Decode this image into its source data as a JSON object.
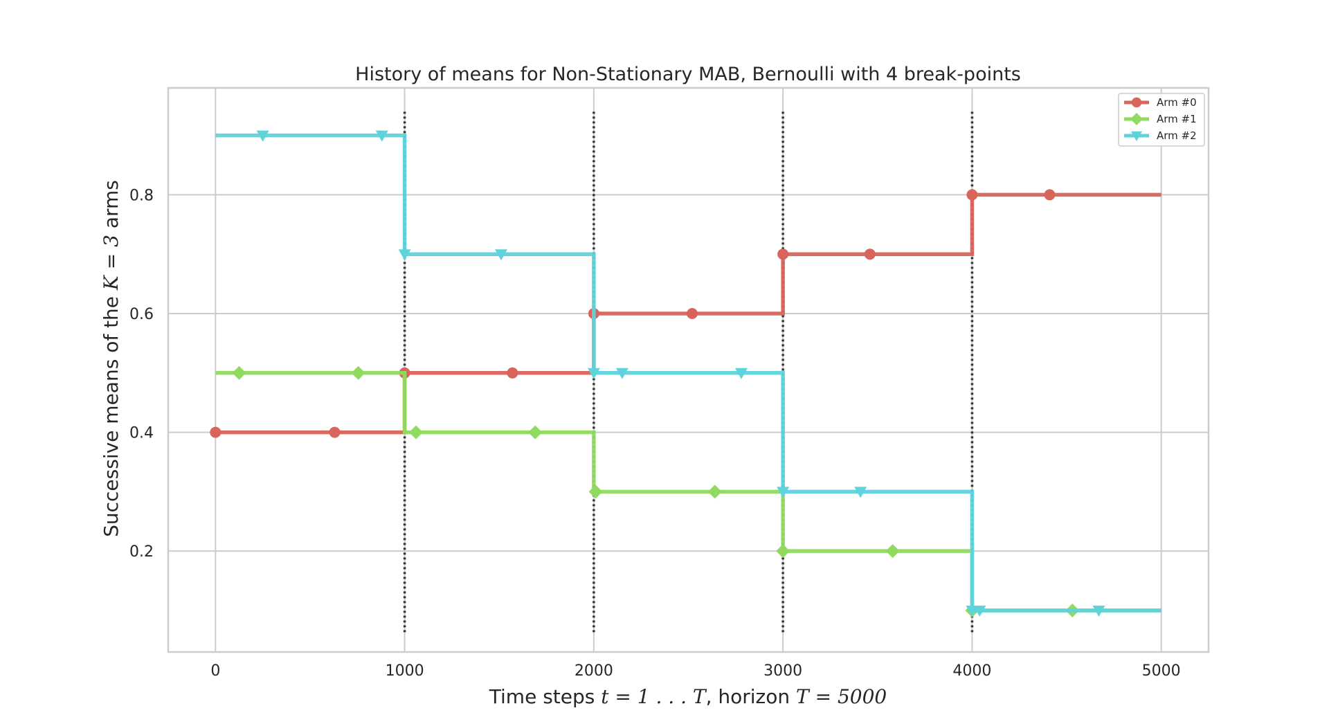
{
  "chart_data": {
    "type": "line",
    "title": "History of means for Non-Stationary MAB, Bernoulli with 4 break-points",
    "xlabel": {
      "prefix": "Time steps ",
      "math1": "t = 1 . . . T",
      "middle": ", horizon ",
      "math2": "T = 5000"
    },
    "ylabel": {
      "prefix": "Successive means of the ",
      "math": "K = 3",
      "suffix": " arms"
    },
    "xlim": [
      -250,
      5250
    ],
    "ylim": [
      0.03,
      0.98
    ],
    "xticks": [
      0,
      1000,
      2000,
      3000,
      4000,
      5000
    ],
    "xtick_labels": [
      "0",
      "1000",
      "2000",
      "3000",
      "4000",
      "5000"
    ],
    "yticks": [
      0.2,
      0.4,
      0.6,
      0.8
    ],
    "ytick_labels": [
      "0.2",
      "0.4",
      "0.6",
      "0.8"
    ],
    "grid": true,
    "legend_position": "top-right",
    "breakpoints": [
      1000,
      2000,
      3000,
      4000
    ],
    "breakpoint_range": [
      0.06,
      0.94
    ],
    "series": [
      {
        "name": "Arm #0",
        "color": "#d9645b",
        "marker": "circle",
        "x": [
          0,
          1000,
          2000,
          3000,
          4000,
          5000
        ],
        "y": [
          0.4,
          0.5,
          0.6,
          0.7,
          0.8,
          0.8
        ],
        "marker_x": [
          0,
          630,
          1000,
          1570,
          2000,
          2520,
          3000,
          3460,
          4000,
          4410
        ]
      },
      {
        "name": "Arm #1",
        "color": "#90db5f",
        "marker": "diamond",
        "x": [
          0,
          1000,
          2000,
          3000,
          4000,
          5000
        ],
        "y": [
          0.5,
          0.4,
          0.3,
          0.2,
          0.1,
          0.1
        ],
        "marker_x": [
          125,
          755,
          1060,
          1690,
          2010,
          2640,
          3000,
          3580,
          4000,
          4530
        ]
      },
      {
        "name": "Arm #2",
        "color": "#5ed3dc",
        "marker": "triangle-down",
        "x": [
          0,
          1000,
          2000,
          3000,
          4000,
          5000
        ],
        "y": [
          0.9,
          0.7,
          0.5,
          0.3,
          0.1,
          0.1
        ],
        "marker_x": [
          250,
          880,
          1000,
          1510,
          2000,
          2150,
          2780,
          3000,
          3410,
          4000,
          4040,
          4670
        ]
      }
    ]
  }
}
